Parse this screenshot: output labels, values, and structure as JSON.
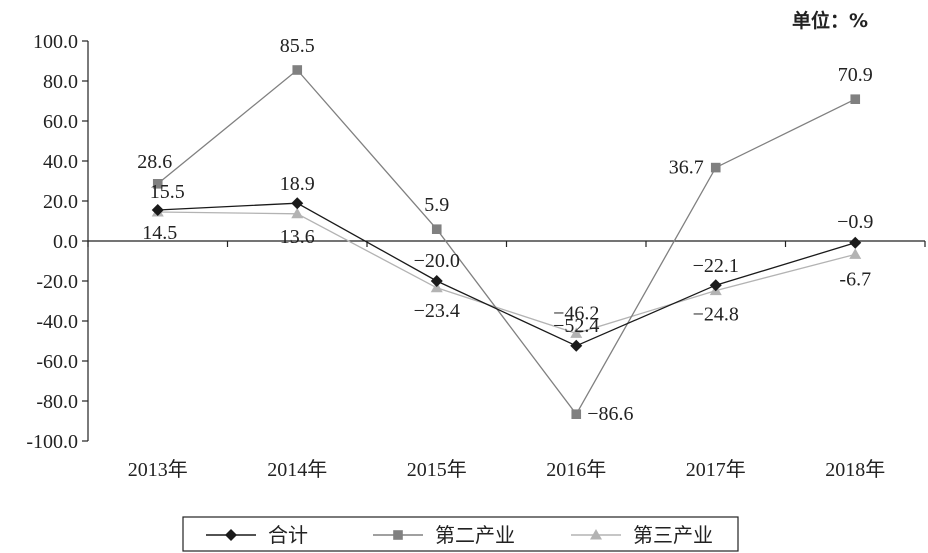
{
  "unit_label": "单位：%",
  "chart_data": {
    "type": "line",
    "categories": [
      "2013年",
      "2014年",
      "2015年",
      "2016年",
      "2017年",
      "2018年"
    ],
    "ylim": [
      -100,
      100
    ],
    "yticks": [
      "100.0",
      "80.0",
      "60.0",
      "40.0",
      "20.0",
      "0.0",
      "-20.0",
      "-40.0",
      "-60.0",
      "-80.0",
      "-100.0"
    ],
    "grid": false,
    "legend_position": "bottom",
    "series": [
      {
        "name": "合计",
        "color": "#1a1a1a",
        "marker": "diamond",
        "values": [
          15.5,
          18.9,
          -20.0,
          -52.4,
          -22.1,
          -0.9
        ],
        "labels": [
          "15.5",
          "18.9",
          "−20.0",
          "−52.4",
          "−22.1",
          "−0.9"
        ]
      },
      {
        "name": "第二产业",
        "color": "#808080",
        "marker": "square",
        "values": [
          28.6,
          85.5,
          5.9,
          -86.6,
          36.7,
          70.9
        ],
        "labels": [
          "28.6",
          "85.5",
          "5.9",
          "−86.6",
          "36.7",
          "70.9"
        ]
      },
      {
        "name": "第三产业",
        "color": "#b3b3b3",
        "marker": "triangle",
        "values": [
          14.5,
          13.6,
          -23.4,
          -46.2,
          -24.8,
          -6.7
        ],
        "labels": [
          "14.5",
          "13.6",
          "−23.4",
          "−46.2",
          "−24.8",
          "-6.7"
        ]
      }
    ]
  }
}
